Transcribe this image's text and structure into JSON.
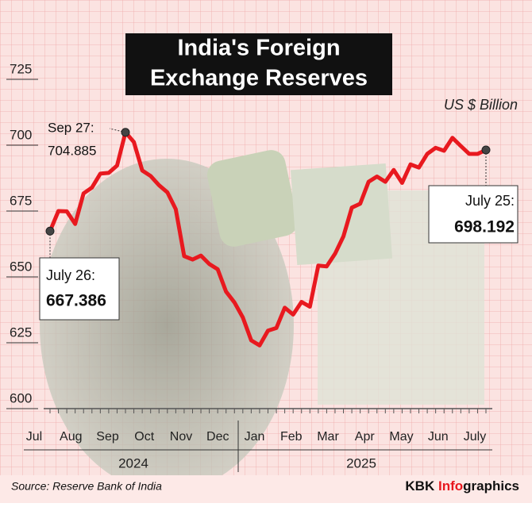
{
  "chart_data": {
    "type": "line",
    "title_lines": [
      "India's Foreign",
      "Exchange Reserves"
    ],
    "unit": "US $ Billion",
    "x_labels": [
      "Jul",
      "Aug",
      "Sep",
      "Oct",
      "Nov",
      "Dec",
      "Jan",
      "Feb",
      "Mar",
      "Apr",
      "May",
      "Jun",
      "July"
    ],
    "years": [
      "2024",
      "2025"
    ],
    "series": [
      {
        "name": "Foreign exchange reserves",
        "color": "#e8191f",
        "values": [
          667.386,
          675.0,
          674.9,
          670.1,
          681.7,
          683.9,
          689.2,
          689.5,
          692.3,
          704.885,
          701.2,
          690.4,
          688.3,
          684.8,
          682.1,
          675.7,
          657.9,
          656.6,
          658.1,
          654.9,
          652.9,
          644.4,
          640.3,
          634.6,
          625.9,
          624.0,
          629.6,
          630.6,
          638.3,
          635.7,
          640.5,
          638.7,
          654.3,
          654.0,
          658.8,
          665.4,
          676.3,
          677.8,
          686.1,
          688.1,
          686.1,
          690.6,
          685.7,
          692.7,
          691.5,
          696.7,
          699.0,
          697.9,
          702.8,
          699.7,
          696.7,
          696.7,
          698.192
        ]
      }
    ],
    "ylim": [
      600,
      725
    ],
    "yticks": [
      600,
      625,
      650,
      675,
      700,
      725
    ],
    "annotations": [
      {
        "label": "July 26:",
        "value": 667.386
      },
      {
        "label": "Sep 27:",
        "value": 704.885
      },
      {
        "label": "July 25:",
        "value": 698.192
      }
    ],
    "source": "Source: Reserve Bank of India",
    "brand": {
      "prefix": "KBK",
      "highlight": "Info",
      "suffix": "graphics"
    }
  }
}
